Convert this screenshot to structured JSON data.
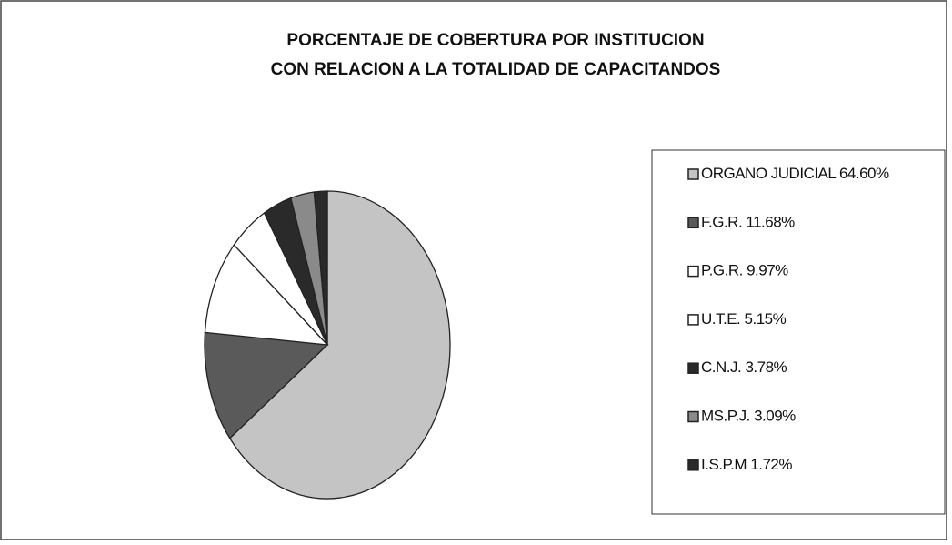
{
  "chart_data": {
    "type": "pie",
    "title": "PORCENTAJE DE COBERTURA POR INSTITUCION",
    "subtitle": "CON RELACION A LA TOTALIDAD DE CAPACITANDOS",
    "categories": [
      "ORGANO JUDICIAL",
      "F.G.R.",
      "P.G.R.",
      "U.T.E.",
      "C.N.J.",
      "MS.P.J.",
      "I.S.P.M"
    ],
    "values": [
      64.6,
      11.68,
      9.97,
      5.15,
      3.78,
      3.09,
      1.72
    ],
    "value_labels": [
      "64.60%",
      "11.68%",
      "9.97%",
      "5.15%",
      "3.78%",
      "3.09%",
      "1.72%"
    ],
    "colors": [
      "#c4c4c4",
      "#5a5a5a",
      "#ffffff",
      "#ffffff",
      "#2a2a2a",
      "#8a8a8a",
      "#2a2a2a"
    ],
    "legend": "right"
  }
}
